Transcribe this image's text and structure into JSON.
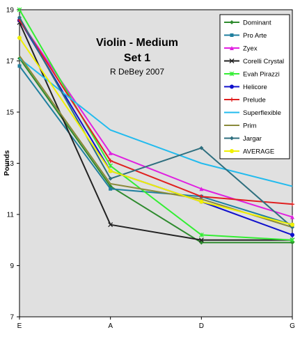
{
  "chart_data": {
    "type": "line",
    "title": "Violin - Medium",
    "subtitle": "Set 1",
    "caption": "R DeBey 2007",
    "xlabel": "",
    "ylabel": "Pounds",
    "categories": [
      "E",
      "A",
      "D",
      "G"
    ],
    "ylim": [
      7,
      19
    ],
    "yticks": [
      7,
      9,
      11,
      13,
      15,
      17,
      19
    ],
    "grid": false,
    "legend_position": "top-right",
    "plot_background": "#e0e0e0",
    "series": [
      {
        "name": "Dominant",
        "color": "#2e8b2e",
        "marker": "diamond",
        "values": [
          17.1,
          12.1,
          9.9,
          9.9
        ]
      },
      {
        "name": "Pro Arte",
        "color": "#1f7f9f",
        "marker": "square",
        "values": [
          16.8,
          12.0,
          11.7,
          10.6
        ]
      },
      {
        "name": "Zyex",
        "color": "#e020e0",
        "marker": "triangle",
        "values": [
          18.6,
          13.4,
          12.0,
          10.9
        ]
      },
      {
        "name": "Corelli Crystal",
        "color": "#222222",
        "marker": "x",
        "values": [
          18.5,
          10.6,
          10.0,
          10.0
        ]
      },
      {
        "name": "Evah Pirazzi",
        "color": "#33ee33",
        "marker": "star",
        "values": [
          19.0,
          12.9,
          10.2,
          10.0
        ]
      },
      {
        "name": "Helicore",
        "color": "#1010cc",
        "marker": "circle",
        "values": [
          18.6,
          12.7,
          11.5,
          10.2
        ]
      },
      {
        "name": "Prelude",
        "color": "#e02020",
        "marker": "plus",
        "values": [
          18.6,
          13.1,
          11.7,
          11.4
        ]
      },
      {
        "name": "Superflexible",
        "color": "#22bbee",
        "marker": "none",
        "values": [
          17.1,
          14.3,
          13.0,
          12.1
        ]
      },
      {
        "name": "Prim",
        "color": "#8a8a3a",
        "marker": "none",
        "values": [
          17.2,
          12.2,
          11.6,
          10.5
        ]
      },
      {
        "name": "Jargar",
        "color": "#2f6f7f",
        "marker": "diamond",
        "values": [
          18.7,
          12.4,
          13.6,
          10.5
        ]
      },
      {
        "name": "AVERAGE",
        "color": "#f0f000",
        "marker": "circle",
        "values": [
          17.9,
          12.7,
          11.5,
          10.6
        ]
      }
    ]
  }
}
